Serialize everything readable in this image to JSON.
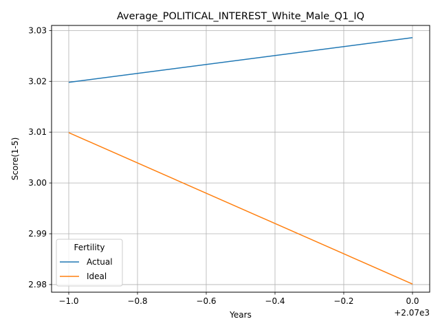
{
  "chart_data": {
    "type": "line",
    "title": "Average_POLITICAL_INTEREST_White_Male_Q1_IQ",
    "xlabel": "Years",
    "ylabel": "Score(1-5)",
    "x_offset_label": "+2.07e3",
    "x": [
      2069,
      2070
    ],
    "xlim": [
      2068.95,
      2070.05
    ],
    "ylim": [
      2.9785,
      3.031
    ],
    "x_ticks": [
      {
        "value": 2069.0,
        "label": "−1.0"
      },
      {
        "value": 2069.2,
        "label": "−0.8"
      },
      {
        "value": 2069.4,
        "label": "−0.6"
      },
      {
        "value": 2069.6,
        "label": "−0.4"
      },
      {
        "value": 2069.8,
        "label": "−0.2"
      },
      {
        "value": 2070.0,
        "label": "0.0"
      }
    ],
    "y_ticks": [
      {
        "value": 2.98,
        "label": "2.98"
      },
      {
        "value": 2.99,
        "label": "2.99"
      },
      {
        "value": 3.0,
        "label": "3.00"
      },
      {
        "value": 3.01,
        "label": "3.01"
      },
      {
        "value": 3.02,
        "label": "3.02"
      },
      {
        "value": 3.03,
        "label": "3.03"
      }
    ],
    "grid": true,
    "legend": {
      "title": "Fertility",
      "placement": "lower-left"
    },
    "series": [
      {
        "name": "Actual",
        "color": "#1f77b4",
        "values": [
          3.0198,
          3.0286
        ]
      },
      {
        "name": "Ideal",
        "color": "#ff7f0e",
        "values": [
          3.0099,
          2.9801
        ]
      }
    ]
  }
}
